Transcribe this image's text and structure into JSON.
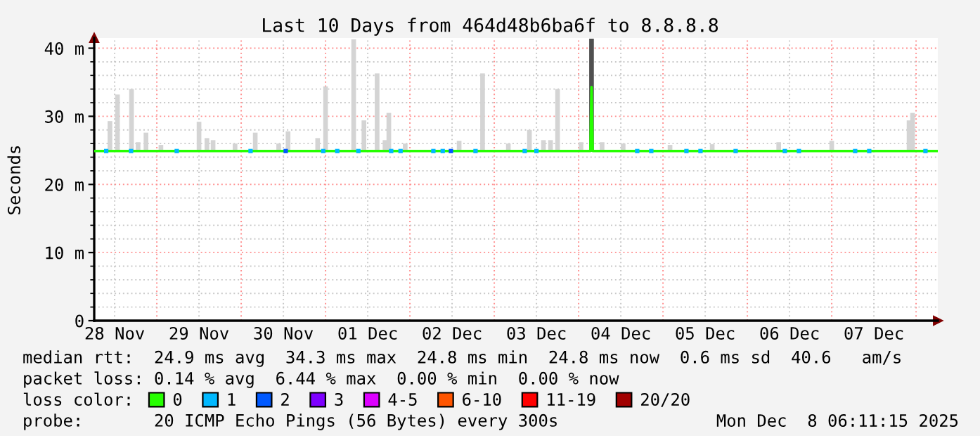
{
  "chart_data": {
    "type": "bar",
    "title": "Last 10 Days from 464d48b6ba6f to 8.8.8.8",
    "ylabel": "Seconds",
    "legend_title": "loss color:",
    "xlim": [
      "2025-11-28T06:11",
      "2025-12-08T06:11"
    ],
    "xticks": [
      {
        "value": "2025-11-28T12:00",
        "label": "28 Nov"
      },
      {
        "value": "2025-11-29T12:00",
        "label": "29 Nov"
      },
      {
        "value": "2025-11-30T12:00",
        "label": "30 Nov"
      },
      {
        "value": "2025-12-01T12:00",
        "label": "01 Dec"
      },
      {
        "value": "2025-12-02T12:00",
        "label": "02 Dec"
      },
      {
        "value": "2025-12-03T12:00",
        "label": "03 Dec"
      },
      {
        "value": "2025-12-04T12:00",
        "label": "04 Dec"
      },
      {
        "value": "2025-12-05T12:00",
        "label": "05 Dec"
      },
      {
        "value": "2025-12-06T12:00",
        "label": "06 Dec"
      },
      {
        "value": "2025-12-07T12:00",
        "label": "07 Dec"
      },
      {
        "value": "2025-11-29T00:00",
        "label": null
      },
      {
        "value": "2025-11-30T00:00",
        "label": null
      },
      {
        "value": "2025-12-01T00:00",
        "label": null
      },
      {
        "value": "2025-12-02T00:00",
        "label": null
      },
      {
        "value": "2025-12-03T00:00",
        "label": null
      },
      {
        "value": "2025-12-04T00:00",
        "label": null
      },
      {
        "value": "2025-12-05T00:00",
        "label": null
      },
      {
        "value": "2025-12-06T00:00",
        "label": null
      },
      {
        "value": "2025-12-07T00:00",
        "label": null
      },
      {
        "value": "2025-12-08T00:00",
        "label": null
      }
    ],
    "ylim": [
      0,
      41.5
    ],
    "yticks": [
      {
        "value": 0,
        "label": "0"
      },
      {
        "value": 10,
        "label": "10 m"
      },
      {
        "value": 20,
        "label": "20 m"
      },
      {
        "value": 30,
        "label": "30 m"
      },
      {
        "value": 40,
        "label": "40 m"
      },
      {
        "value": 2,
        "label": null
      },
      {
        "value": 4,
        "label": null
      },
      {
        "value": 6,
        "label": null
      },
      {
        "value": 8,
        "label": null
      },
      {
        "value": 12,
        "label": null
      },
      {
        "value": 14,
        "label": null
      },
      {
        "value": 16,
        "label": null
      },
      {
        "value": 18,
        "label": null
      },
      {
        "value": 22,
        "label": null
      },
      {
        "value": 24,
        "label": null
      },
      {
        "value": 26,
        "label": null
      },
      {
        "value": 28,
        "label": null
      },
      {
        "value": 32,
        "label": null
      },
      {
        "value": 34,
        "label": null
      },
      {
        "value": 36,
        "label": null
      },
      {
        "value": 38,
        "label": null
      }
    ],
    "grid": true,
    "legend": "bottom",
    "series": [
      {
        "color": "#d4d4d4",
        "x": [
          "2025-11-28T10:40",
          "2025-11-28T12:48",
          "2025-11-28T16:48",
          "2025-11-28T18:40",
          "2025-11-28T20:55",
          "2025-11-29T01:10",
          "2025-11-29T12:00",
          "2025-11-29T14:15",
          "2025-11-29T16:00",
          "2025-11-29T22:15",
          "2025-11-30T04:00",
          "2025-11-30T10:40",
          "2025-11-30T13:20",
          "2025-11-30T21:45",
          "2025-12-01T00:00",
          "2025-12-01T08:00",
          "2025-12-01T10:55",
          "2025-12-01T14:40",
          "2025-12-01T16:55",
          "2025-12-01T18:00",
          "2025-12-01T22:40",
          "2025-12-02T14:00",
          "2025-12-02T20:40",
          "2025-12-03T04:00",
          "2025-12-03T10:00",
          "2025-12-03T14:00",
          "2025-12-03T16:00",
          "2025-12-03T18:00",
          "2025-12-04T00:40",
          "2025-12-04T06:40",
          "2025-12-04T12:40",
          "2025-12-05T02:00",
          "2025-12-05T14:00",
          "2025-12-06T08:55",
          "2025-12-07T00:00",
          "2025-12-07T22:00",
          "2025-12-07T23:00"
        ],
        "base": [
          24.8,
          24.8,
          24.8,
          24.8,
          24.8,
          24.8,
          24.8,
          24.8,
          24.8,
          24.8,
          24.8,
          24.8,
          24.8,
          24.8,
          24.8,
          24.8,
          24.8,
          24.8,
          24.8,
          24.8,
          24.8,
          24.8,
          24.8,
          24.8,
          24.8,
          24.8,
          24.8,
          24.8,
          24.8,
          24.8,
          24.8,
          24.8,
          24.8,
          24.8,
          24.8,
          24.8,
          24.8
        ],
        "values": [
          4.5,
          8.4,
          9.2,
          1.4,
          2.8,
          1.0,
          4.4,
          2.0,
          1.7,
          1.2,
          2.8,
          1.2,
          3.0,
          2.0,
          9.6,
          16.5,
          4.6,
          11.5,
          1.7,
          5.7,
          1.2,
          1.6,
          11.5,
          1.2,
          3.2,
          1.7,
          1.7,
          9.2,
          1.4,
          1.4,
          1.2,
          1.0,
          1.1,
          1.4,
          1.6,
          4.6,
          5.7
        ]
      },
      {
        "type": "bar",
        "color": "#505050",
        "x": [
          "2025-12-04T03:40"
        ],
        "base": [
          24.8
        ],
        "values": [
          16.6
        ]
      },
      {
        "type": "line",
        "name": "0",
        "color": "#26ff00",
        "x": [
          "2025-11-28T06:11",
          "2025-12-04T03:20",
          "2025-12-04T03:40",
          "2025-12-04T04:00",
          "2025-12-08T06:11"
        ],
        "values": [
          24.9,
          24.9,
          34.3,
          24.9,
          24.9
        ]
      },
      {
        "type": "scatter",
        "name": "1",
        "color": "#00b8ff",
        "x": [
          "2025-11-28T09:36",
          "2025-11-28T16:40",
          "2025-11-29T05:40",
          "2025-11-30T02:40",
          "2025-11-30T23:20",
          "2025-12-01T03:20",
          "2025-12-01T09:20",
          "2025-12-01T18:40",
          "2025-12-01T21:20",
          "2025-12-02T06:40",
          "2025-12-02T09:20",
          "2025-12-02T18:40",
          "2025-12-03T08:40",
          "2025-12-03T12:00",
          "2025-12-04T16:40",
          "2025-12-04T20:40",
          "2025-12-05T06:40",
          "2025-12-05T10:40",
          "2025-12-05T20:40",
          "2025-12-06T10:40",
          "2025-12-06T14:40",
          "2025-12-07T06:40",
          "2025-12-07T10:40",
          "2025-12-08T02:40"
        ],
        "values": [
          24.9,
          24.9,
          24.9,
          24.9,
          24.9,
          24.9,
          24.9,
          24.9,
          24.9,
          24.9,
          24.9,
          24.9,
          24.9,
          24.9,
          24.9,
          24.9,
          24.9,
          24.9,
          24.9,
          24.9,
          24.9,
          24.9,
          24.9,
          24.9
        ]
      },
      {
        "type": "scatter",
        "name": "2",
        "color": "#0059ff",
        "x": [
          "2025-11-30T12:40",
          "2025-12-02T11:40"
        ],
        "values": [
          24.9,
          24.9
        ]
      },
      {
        "type": "scatter",
        "name": "3",
        "color": "#7e00ff"
      },
      {
        "type": "scatter",
        "name": "4-5",
        "color": "#dd00ff"
      },
      {
        "type": "scatter",
        "name": "6-10",
        "color": "#ff5500"
      },
      {
        "type": "scatter",
        "name": "11-19",
        "color": "#ff0000"
      },
      {
        "type": "scatter",
        "name": "20/20",
        "color": "#a10000"
      }
    ],
    "annotations": [
      "median rtt:  24.9 ms avg  34.3 ms max  24.8 ms min  24.8 ms now  0.6 ms sd  40.6   am/s",
      "packet loss: 0.14 % avg  6.44 % max  0.00 % min  0.00 % now",
      "probe:       20 ICMP Echo Pings (56 Bytes) every 300s",
      "Mon Dec  8 06:11:15 2025"
    ]
  }
}
